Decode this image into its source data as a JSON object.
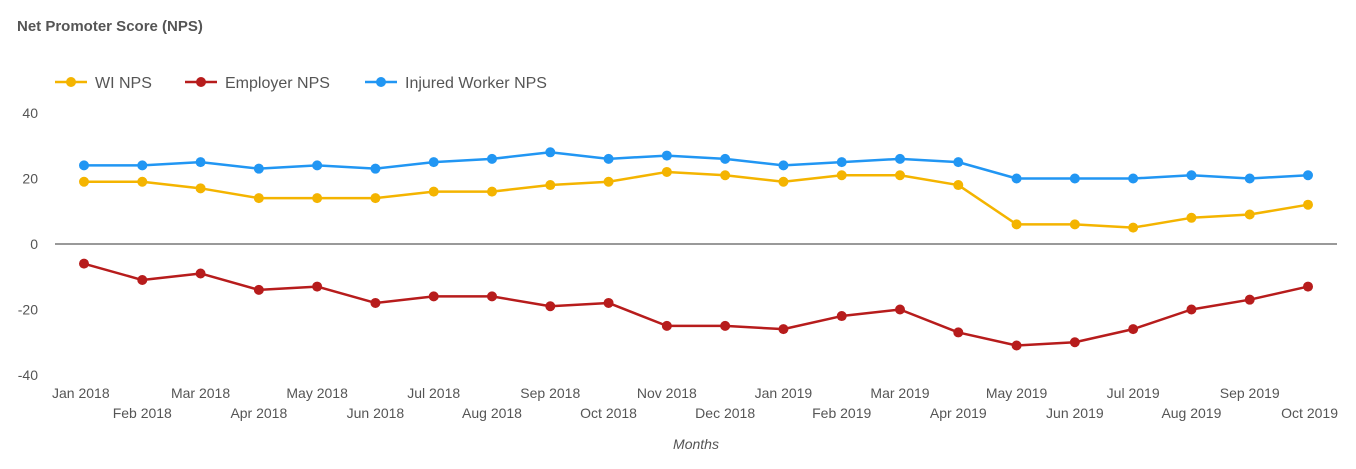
{
  "chart_data": {
    "type": "line",
    "title": "Net Promoter Score (NPS)",
    "xlabel": "Months",
    "ylabel": "",
    "ylim": [
      -40,
      40
    ],
    "yticks": [
      40,
      20,
      0,
      -20,
      -40
    ],
    "legend_position": "top-left",
    "categories": [
      "Jan 2018",
      "Feb 2018",
      "Mar 2018",
      "Apr 2018",
      "May 2018",
      "Jun 2018",
      "Jul 2018",
      "Aug 2018",
      "Sep 2018",
      "Oct 2018",
      "Nov 2018",
      "Dec 2018",
      "Jan 2019",
      "Feb 2019",
      "Mar 2019",
      "Apr 2019",
      "May 2019",
      "Jun 2019",
      "Jul 2019",
      "Aug 2019",
      "Sep 2019",
      "Oct 2019"
    ],
    "series": [
      {
        "name": "WI NPS",
        "color": "#f4b400",
        "values": [
          19,
          19,
          17,
          14,
          14,
          14,
          16,
          16,
          18,
          19,
          22,
          21,
          19,
          21,
          21,
          18,
          6,
          6,
          5,
          8,
          9,
          12
        ]
      },
      {
        "name": "Employer NPS",
        "color": "#b71c1c",
        "values": [
          -6,
          -11,
          -9,
          -14,
          -13,
          -18,
          -16,
          -16,
          -19,
          -18,
          -25,
          -25,
          -26,
          -22,
          -20,
          -27,
          -31,
          -30,
          -26,
          -20,
          -17,
          -13
        ]
      },
      {
        "name": "Injured Worker NPS",
        "color": "#2196f3",
        "values": [
          24,
          24,
          25,
          23,
          24,
          23,
          25,
          26,
          28,
          26,
          27,
          26,
          24,
          25,
          26,
          25,
          20,
          20,
          20,
          21,
          20,
          21
        ]
      }
    ]
  }
}
